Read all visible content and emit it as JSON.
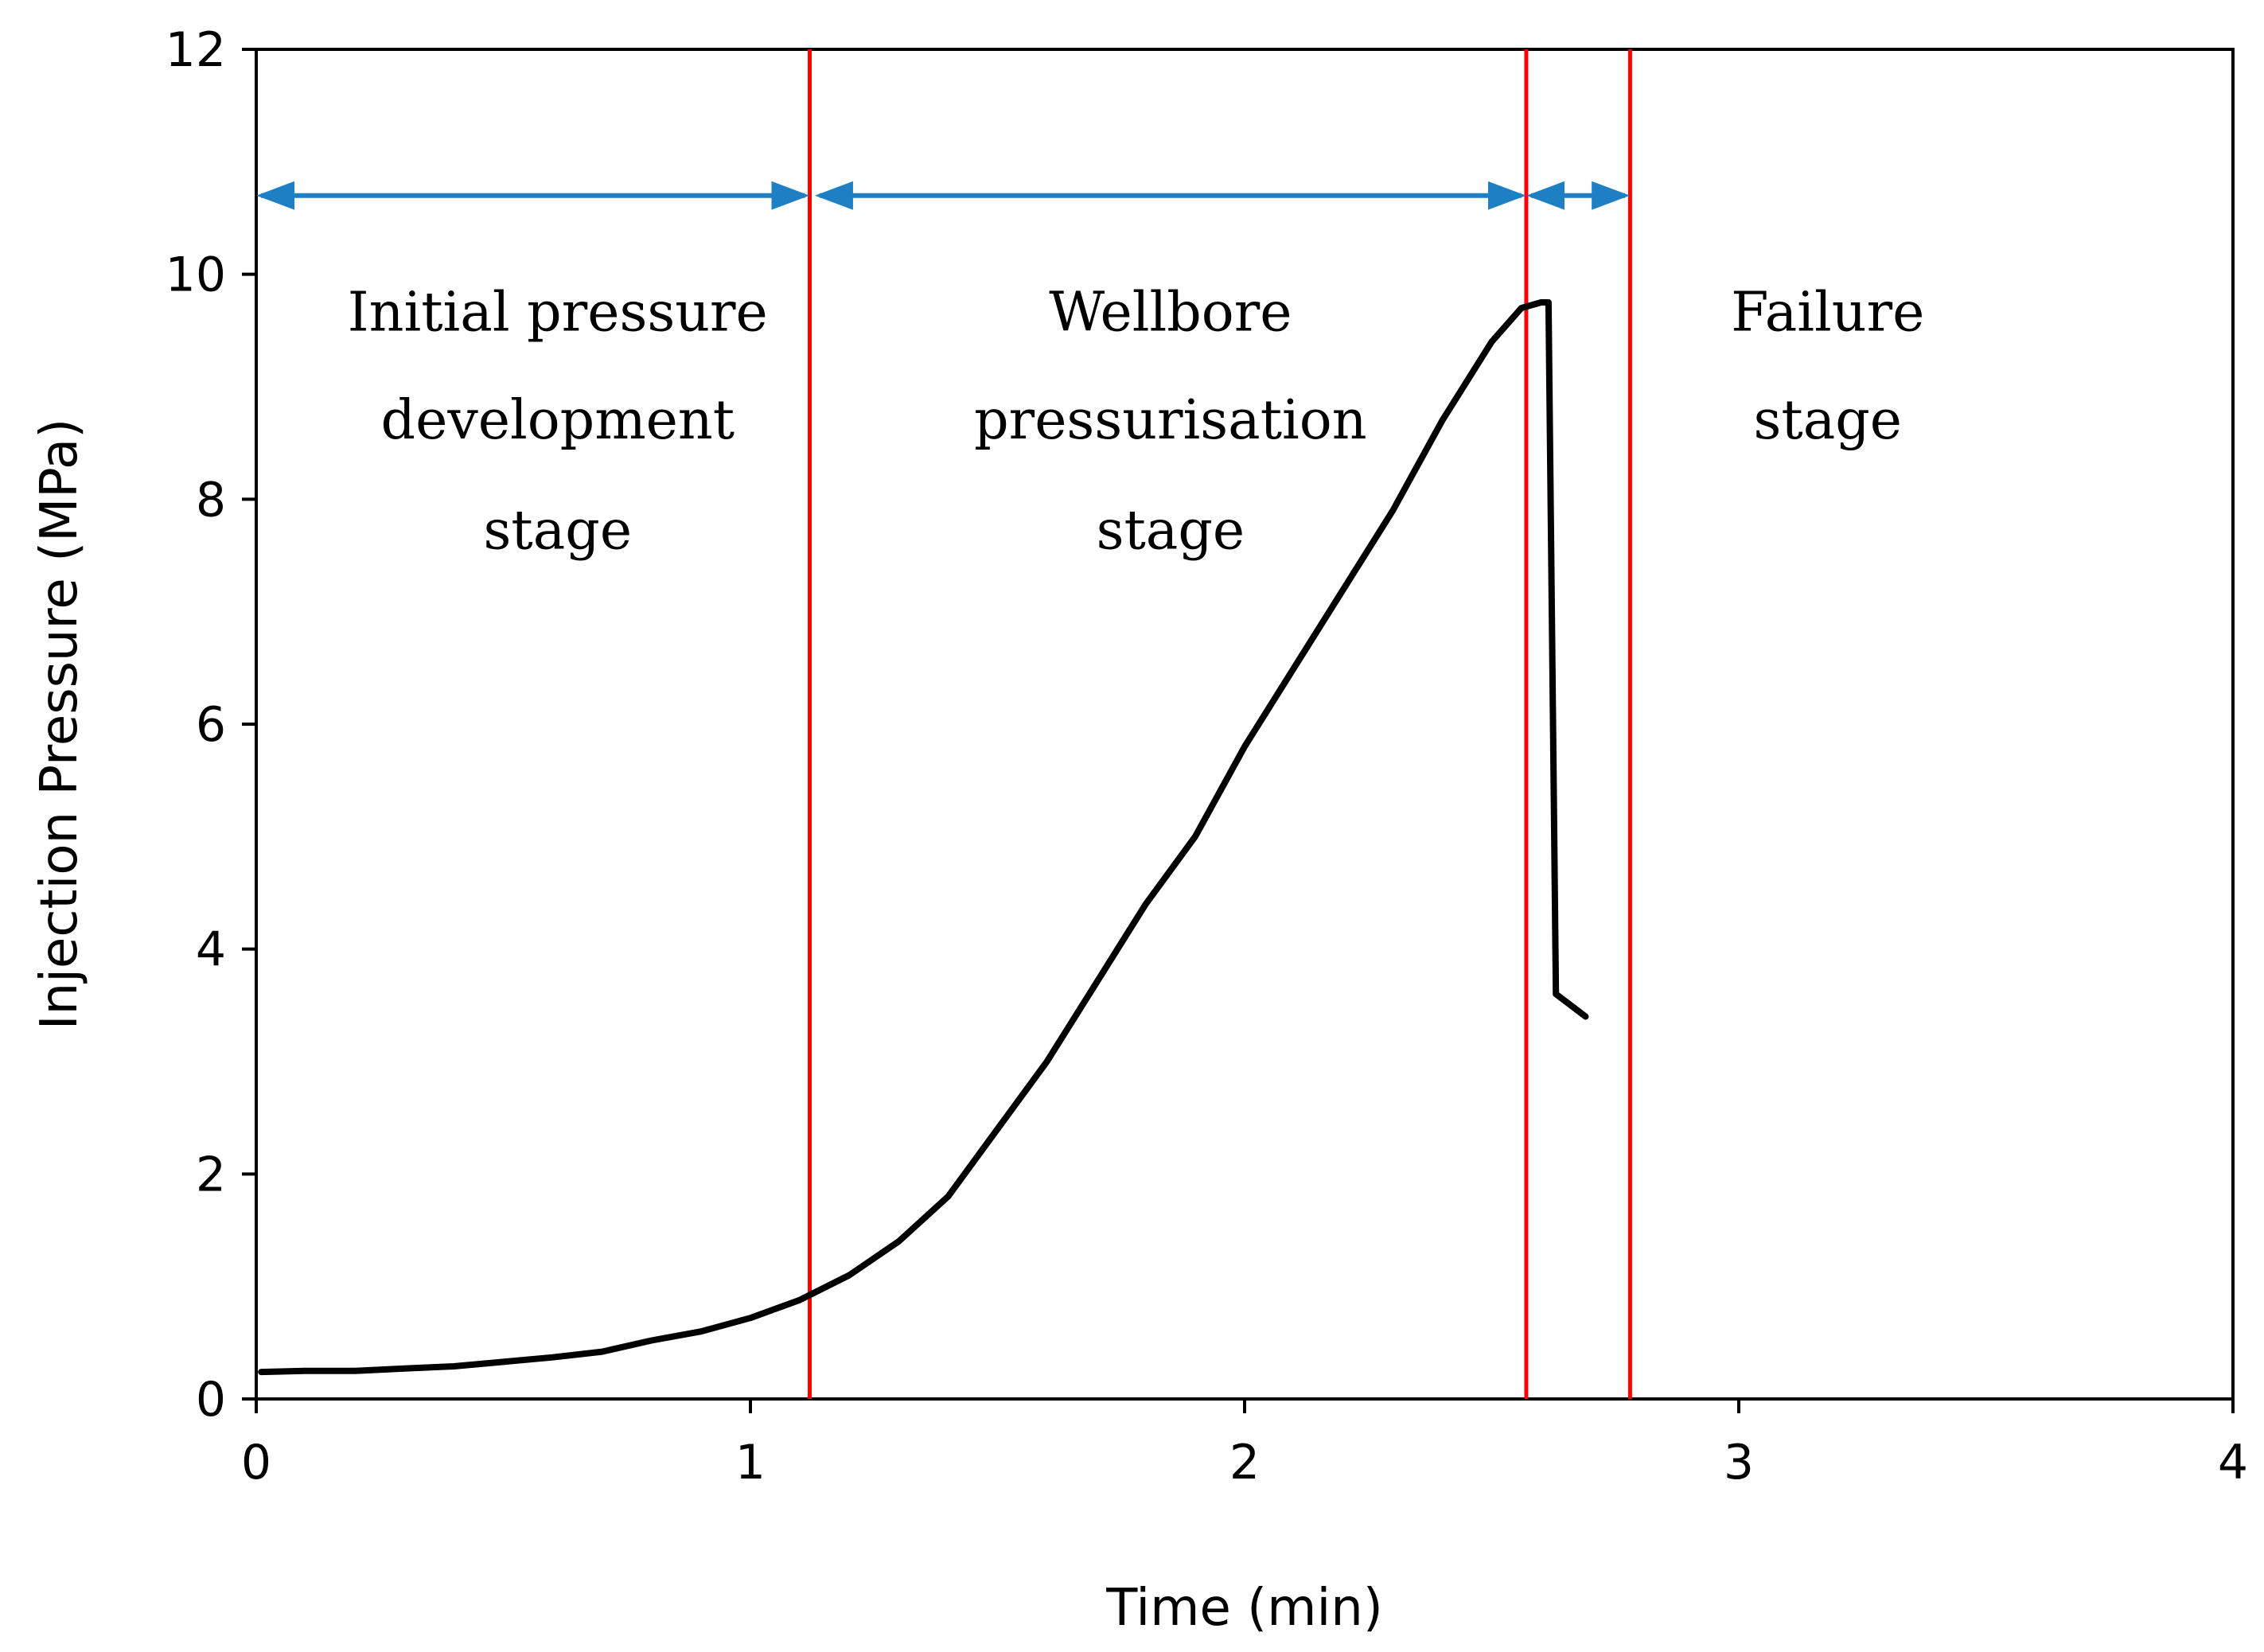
{
  "chart_data": {
    "type": "line",
    "title": "",
    "xlabel": "Time (min)",
    "ylabel": "Injection Pressure (MPa)",
    "xlim": [
      0,
      4
    ],
    "ylim": [
      0,
      12
    ],
    "xticks": [
      "0",
      "1",
      "2",
      "3",
      "4"
    ],
    "yticks": [
      "0",
      "2",
      "4",
      "6",
      "8",
      "10",
      "12"
    ],
    "grid": false,
    "colors": {
      "curve": "#000000",
      "boundary": "#ff0000",
      "arrow": "#1f7fc4"
    },
    "series": [
      {
        "name": "Injection pressure",
        "x": [
          0.01,
          0.1,
          0.2,
          0.3,
          0.4,
          0.5,
          0.6,
          0.7,
          0.8,
          0.9,
          1.0,
          1.1,
          1.2,
          1.3,
          1.4,
          1.5,
          1.6,
          1.7,
          1.8,
          1.9,
          2.0,
          2.1,
          2.2,
          2.3,
          2.4,
          2.5,
          2.56,
          2.6,
          2.615,
          2.63,
          2.66,
          2.69
        ],
        "y": [
          0.24,
          0.25,
          0.25,
          0.27,
          0.29,
          0.33,
          0.37,
          0.42,
          0.52,
          0.6,
          0.72,
          0.88,
          1.1,
          1.4,
          1.8,
          2.4,
          3.0,
          3.7,
          4.4,
          5.0,
          5.8,
          6.5,
          7.2,
          7.9,
          8.7,
          9.4,
          9.7,
          9.75,
          9.75,
          3.6,
          3.5,
          3.4
        ]
      }
    ],
    "boundaries": [
      1.12,
      2.57,
      2.78
    ],
    "arrow_level": 10.7,
    "stages": [
      {
        "name": "initial",
        "lines": [
          "Initial pressure",
          "development",
          "stage"
        ],
        "x": 0.61,
        "y_lines": [
          9.5,
          8.54,
          7.56
        ],
        "span": [
          0.01,
          1.11
        ]
      },
      {
        "name": "wellbore",
        "lines": [
          "Wellbore",
          "pressurisation",
          "stage"
        ],
        "x": 1.85,
        "y_lines": [
          9.5,
          8.54,
          7.56
        ],
        "span": [
          1.14,
          2.56
        ]
      },
      {
        "name": "failure",
        "lines": [
          "Failure",
          "stage"
        ],
        "x": 3.18,
        "y_lines": [
          9.5,
          8.54
        ],
        "span": [
          2.58,
          2.77
        ]
      }
    ]
  }
}
